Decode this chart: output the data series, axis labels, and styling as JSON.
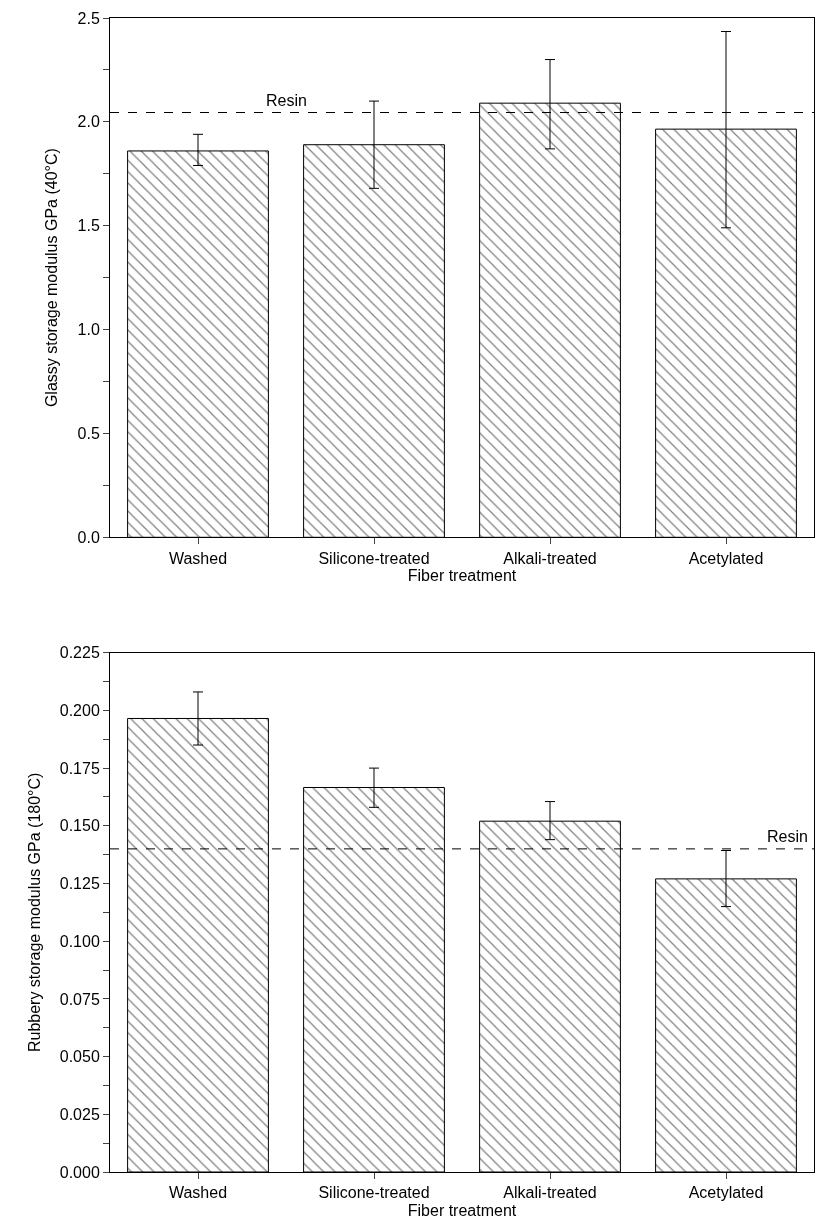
{
  "chart_data": [
    {
      "type": "bar",
      "xlabel": "Fiber treatment",
      "ylabel": "Glassy storage modulus GPa (40°C)",
      "categories": [
        "Washed",
        "Silicone-treated",
        "Alkali-treated",
        "Acetylated"
      ],
      "values": [
        1.86,
        1.89,
        2.09,
        1.965
      ],
      "errors": [
        [
          1.79,
          1.94
        ],
        [
          1.68,
          2.1
        ],
        [
          1.87,
          2.3
        ],
        [
          1.49,
          2.435
        ]
      ],
      "color": "#000000",
      "ylim": [
        0,
        2.5
      ],
      "yticks": [
        {
          "value": 0,
          "label": "0.0"
        },
        {
          "value": 0.25,
          "label": null
        },
        0.5,
        {
          "value": 0.75,
          "label": null
        },
        {
          "value": 1,
          "label": "1.0"
        },
        {
          "value": 1.25,
          "label": null
        },
        1.5,
        {
          "value": 1.75,
          "label": null
        },
        {
          "value": 2,
          "label": "2.0"
        },
        {
          "value": 2.25,
          "label": null
        },
        2.5
      ],
      "ref_lines": [
        {
          "axis": "y",
          "value": 2.045,
          "label": "Resin",
          "line_style": "dashed"
        }
      ]
    },
    {
      "type": "bar",
      "xlabel": "Fiber treatment",
      "ylabel": "Rubbery storage modulus GPa (180°C)",
      "categories": [
        "Washed",
        "Silicone-treated",
        "Alkali-treated",
        "Acetylated"
      ],
      "values": [
        0.1965,
        0.1666,
        0.152,
        0.127
      ],
      "errors": [
        [
          0.185,
          0.208
        ],
        [
          0.158,
          0.175
        ],
        [
          0.144,
          0.1605
        ],
        [
          0.115,
          0.1393
        ]
      ],
      "color": "#000000",
      "ylim": [
        0,
        0.225
      ],
      "yticks": [
        {
          "value": 0,
          "label": "0.000"
        },
        {
          "value": 0.0125,
          "label": null
        },
        0.025,
        {
          "value": 0.0375,
          "label": null
        },
        {
          "value": 0.05,
          "label": "0.050"
        },
        {
          "value": 0.0625,
          "label": null
        },
        0.075,
        {
          "value": 0.0875,
          "label": null
        },
        {
          "value": 0.1,
          "label": "0.100"
        },
        {
          "value": 0.1125,
          "label": null
        },
        0.125,
        {
          "value": 0.1375,
          "label": null
        },
        {
          "value": 0.15,
          "label": "0.150"
        },
        {
          "value": 0.1625,
          "label": null
        },
        0.175,
        {
          "value": 0.1875,
          "label": null
        },
        {
          "value": 0.2,
          "label": "0.200"
        },
        {
          "value": 0.2125,
          "label": null
        },
        0.225
      ],
      "ref_lines": [
        {
          "axis": "y",
          "value": 0.14,
          "label": "Resin",
          "line_style": "dashed"
        }
      ]
    }
  ]
}
